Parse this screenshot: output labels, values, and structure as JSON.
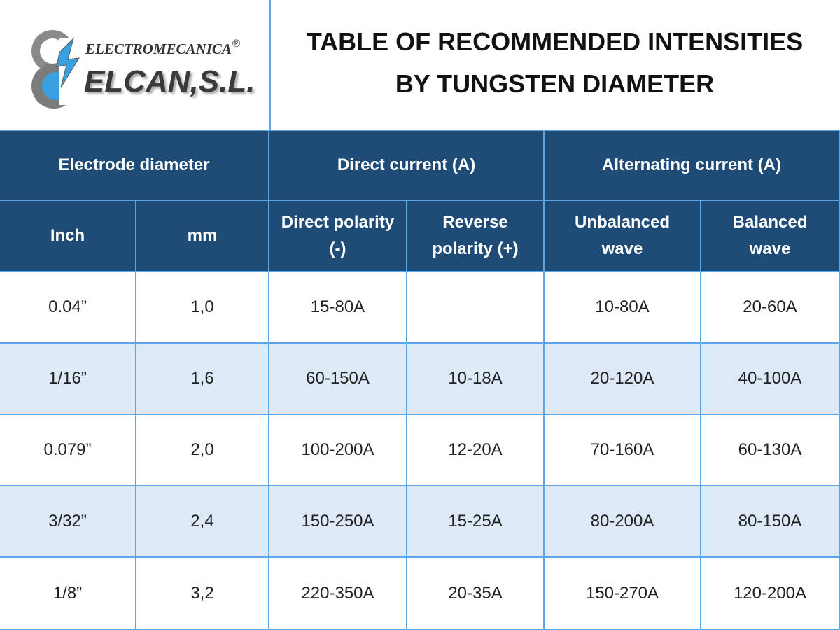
{
  "logo": {
    "brand_top": "ELECTROMECANICA",
    "registered": "®",
    "brand_name": "ELCAN,S.L."
  },
  "header": {
    "title_lines": [
      "TABLE OF RECOMMENDED INTENSITIES",
      "BY TUNGSTEN DIAMETER"
    ]
  },
  "table": {
    "groups": [
      "Electrode diameter",
      "Direct current (A)",
      "Alternating current (A)"
    ],
    "columns": [
      [
        "Inch"
      ],
      [
        "mm"
      ],
      [
        "Direct polarity",
        "(-)"
      ],
      [
        "Reverse",
        "polarity (+)"
      ],
      [
        "Unbalanced",
        "wave"
      ],
      [
        "Balanced",
        "wave"
      ]
    ],
    "rows": [
      [
        "0.04”",
        "1,0",
        "15-80A",
        null,
        "10-80A",
        "20-60A"
      ],
      [
        "1/16”",
        "1,6",
        "60-150A",
        "10-18A",
        "20-120A",
        "40-100A"
      ],
      [
        "0.079”",
        "2,0",
        "100-200A",
        "12-20A",
        "70-160A",
        "60-130A"
      ],
      [
        "3/32”",
        "2,4",
        "150-250A",
        "15-25A",
        "80-200A",
        "80-150A"
      ],
      [
        "1/8”",
        "3,2",
        "220-350A",
        "20-35A",
        "150-270A",
        "120-200A"
      ]
    ]
  }
}
